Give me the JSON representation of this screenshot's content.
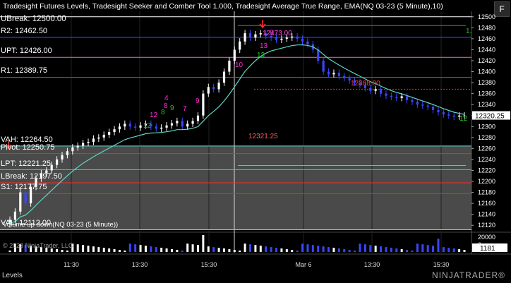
{
  "title": "Tradesight Futures Levels, Tradesight Seeker and Comber Tool 1.000, Tradesight Average True Range, EMA(NQ 03-23 (5 Minute),10)",
  "levels_left": [
    {
      "label": "R2: 12462.50",
      "price": 12462.5,
      "color": "#3a5cff"
    },
    {
      "label": "UPT: 12426.00",
      "price": 12426,
      "color": "#ff5ad2"
    },
    {
      "label": "R1: 12389.75",
      "price": 12389.75,
      "color": "#3a5cff"
    },
    {
      "label": "VAH: 12264.50",
      "price": 12264.5,
      "color": "#56e0e0"
    },
    {
      "label": "Pivot: 12250.75",
      "price": 12250.75,
      "color": "#3a5cff"
    },
    {
      "label": "LPT: 12221.25",
      "price": 12221.25,
      "color": "#ff5ad2"
    },
    {
      "label": "LBreak: 12197.50",
      "price": 12197.5,
      "color": "#ff2a2a"
    },
    {
      "label": "S1: 12177.75",
      "price": 12177.75,
      "color": "#3a5cff"
    },
    {
      "label": "VAL: 12112.00",
      "price": 12112,
      "color": "#56e0e0"
    }
  ],
  "overlap_top_text": "UBreak: 12500.00",
  "top_level": {
    "price": 12500,
    "color": "#ffffff"
  },
  "top_green_line": {
    "price": 12484,
    "color": "#2e9e2e"
  },
  "y_axis": {
    "min": 12110,
    "max": 12510,
    "ticks": [
      12500,
      12480,
      12460,
      12440,
      12420,
      12400,
      12380,
      12360,
      12340,
      12320,
      12300,
      12280,
      12260,
      12240,
      12220,
      12200,
      12180,
      12160,
      12140,
      12120
    ]
  },
  "last_price": "12320.25",
  "volume_axis": {
    "max": 22000,
    "ticks": [
      "20000",
      "10000",
      "0"
    ]
  },
  "last_volume": "1181",
  "x_labels": [
    {
      "text": "11:30",
      "x": 101
    },
    {
      "text": "13:30",
      "x": 198
    },
    {
      "text": "15:30",
      "x": 296
    },
    {
      "text": "Mar 6",
      "x": 430
    },
    {
      "text": "13:30",
      "x": 527
    },
    {
      "text": "15:30",
      "x": 625
    }
  ],
  "annotations": {
    "high": "12473.00",
    "mid": "12368.00",
    "low_mark": "12321.25",
    "seek_count_magenta": [
      "4",
      "9",
      "12",
      "7",
      "8",
      "10",
      "13",
      "9"
    ],
    "seek_count_green": [
      "8",
      "9",
      "12",
      "13",
      "1.",
      "12"
    ]
  },
  "volume_title": "Volume up down(NQ 03-23 (5 Minute))",
  "copyright": "© 2023 NinjaTrader, LLC",
  "bottom_tab": "Levels",
  "brand": "NINJATRADER®",
  "f_button": "F",
  "colors": {
    "up": "#ffffff",
    "down": "#3a46ff",
    "ema": "#5fd6c8",
    "value_area": "#4a4a4a"
  },
  "chart_data": {
    "type": "candlestick",
    "title": "",
    "x_labels": [
      "11:30",
      "13:30",
      "15:30",
      "Mar 6",
      "13:30",
      "15:30"
    ],
    "y_range": [
      12110,
      12510
    ],
    "closes": [
      12130,
      12145,
      12180,
      12160,
      12190,
      12205,
      12215,
      12220,
      12230,
      12240,
      12248,
      12255,
      12262,
      12265,
      12270,
      12272,
      12278,
      12280,
      12285,
      12290,
      12295,
      12300,
      12305,
      12300,
      12298,
      12302,
      12305,
      12300,
      12296,
      12298,
      12302,
      12306,
      12310,
      12300,
      12305,
      12310,
      12320,
      12360,
      12372,
      12368,
      12380,
      12400,
      12420,
      12440,
      12455,
      12470,
      12462,
      12468,
      12470,
      12465,
      12462,
      12458,
      12460,
      12462,
      12464,
      12460,
      12455,
      12450,
      12440,
      12420,
      12400,
      12395,
      12398,
      12392,
      12388,
      12384,
      12380,
      12376,
      12370,
      12365,
      12368,
      12360,
      12356,
      12354,
      12352,
      12355,
      12348,
      12345,
      12340,
      12338,
      12336,
      12330,
      12326,
      12322,
      12320,
      12318,
      12320,
      12320
    ],
    "volume_scale_max": 22000
  }
}
